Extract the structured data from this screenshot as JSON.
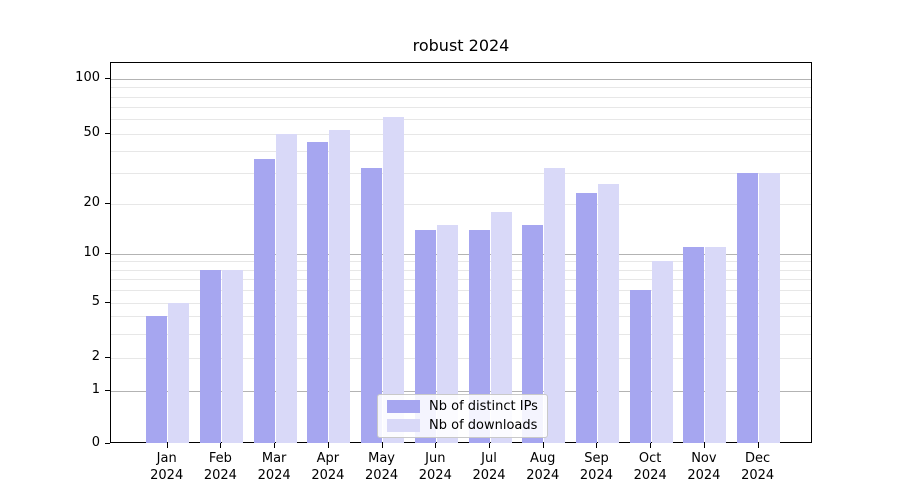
{
  "title": "robust 2024",
  "colors": {
    "ips_bar": "#a6a6f0",
    "downloads_bar": "#d9d9f8",
    "grid_major": "#b3b3b3",
    "grid_minor": "#e7e7e7",
    "axis": "#000000"
  },
  "legend": {
    "items": [
      {
        "label": "Nb of distinct IPs",
        "swatch": "ips_bar"
      },
      {
        "label": "Nb of downloads",
        "swatch": "downloads_bar"
      }
    ]
  },
  "axes": {
    "y_tick_labels": [
      "100",
      "50",
      "20",
      "10",
      "5",
      "2",
      "1",
      "0"
    ],
    "x_year_line": "2024",
    "x_month_labels": [
      "Jan",
      "Feb",
      "Mar",
      "Apr",
      "May",
      "Jun",
      "Jul",
      "Aug",
      "Sep",
      "Oct",
      "Nov",
      "Dec"
    ]
  },
  "chart_data": {
    "type": "bar",
    "title": "robust 2024",
    "categories": [
      "Jan 2024",
      "Feb 2024",
      "Mar 2024",
      "Apr 2024",
      "May 2024",
      "Jun 2024",
      "Jul 2024",
      "Aug 2024",
      "Sep 2024",
      "Oct 2024",
      "Nov 2024",
      "Dec 2024"
    ],
    "series": [
      {
        "name": "Nb of distinct IPs",
        "values": [
          4,
          8,
          36,
          45,
          32,
          14,
          14,
          15,
          23,
          6,
          11,
          30
        ]
      },
      {
        "name": "Nb of downloads",
        "values": [
          5,
          8,
          50,
          52,
          62,
          15,
          18,
          32,
          26,
          9,
          11,
          30
        ]
      }
    ],
    "xlabel": "",
    "ylabel": "",
    "yscale": "symlog",
    "yticks": [
      0,
      1,
      2,
      5,
      10,
      20,
      50,
      100
    ],
    "minor_yticks": [
      2,
      3,
      4,
      5,
      6,
      7,
      8,
      9,
      20,
      30,
      40,
      50,
      60,
      70,
      80,
      90
    ],
    "major_grid_yticks": [
      1,
      10,
      100
    ],
    "ylim": [
      0,
      130
    ],
    "grid": true,
    "legend_position": "lower center"
  }
}
